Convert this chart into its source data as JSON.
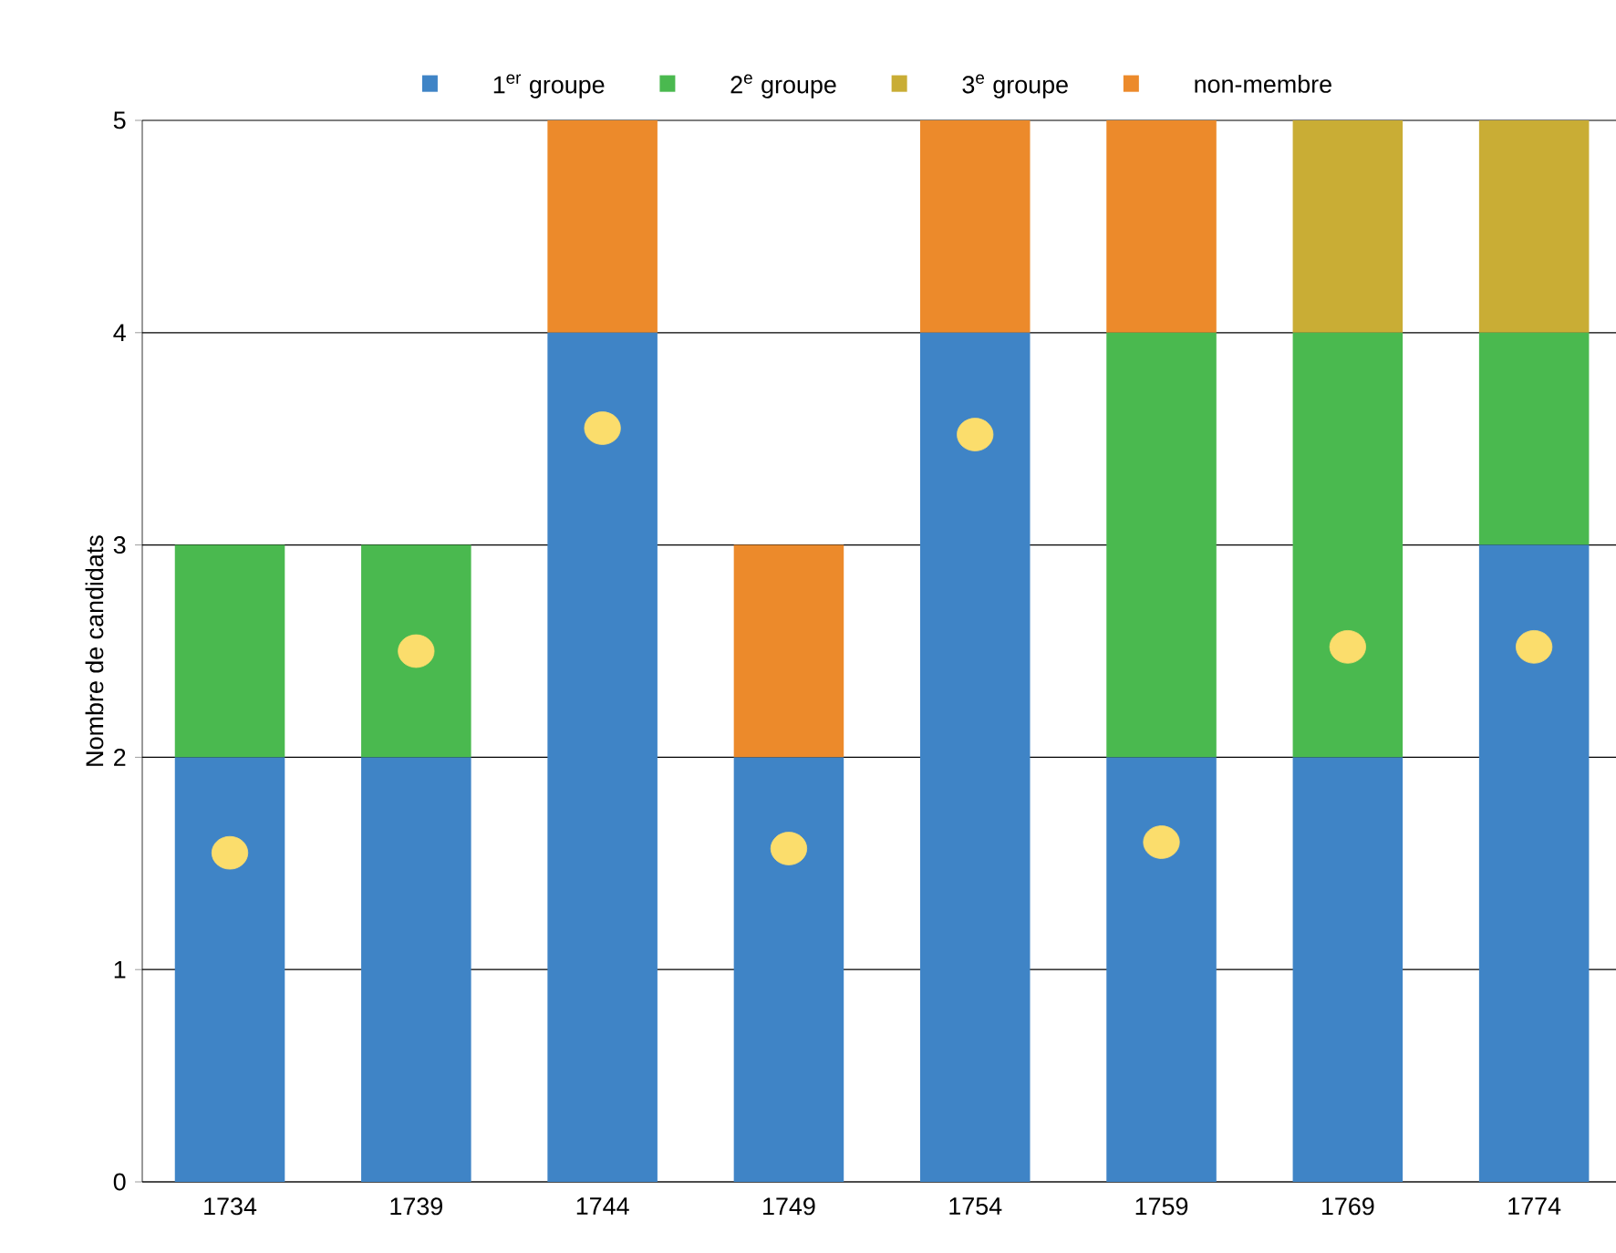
{
  "chart_data": {
    "type": "bar",
    "stacked": true,
    "ylabel": "Nombre de candidats",
    "categories": [
      "1734",
      "1739",
      "1744",
      "1749",
      "1754",
      "1759",
      "1769",
      "1774"
    ],
    "series": [
      {
        "name": "1$^{er}$ groupe",
        "color": "#3f84c6",
        "values": [
          2,
          2,
          4,
          2,
          4,
          2,
          2,
          3
        ]
      },
      {
        "name": "2$^{e}$ groupe",
        "color": "#4ab94f",
        "values": [
          1,
          1,
          0,
          0,
          0,
          2,
          2,
          1
        ]
      },
      {
        "name": "3$^{e}$ groupe",
        "color": "#c9ad35",
        "values": [
          0,
          0,
          0,
          0,
          0,
          0,
          1,
          1
        ]
      },
      {
        "name": "non-membre",
        "color": "#ec8a2b",
        "values": [
          0,
          0,
          1,
          1,
          1,
          1,
          0,
          0
        ]
      },
      {
        "type": "scatter",
        "color": "#fbdd6c",
        "marker": "circle",
        "values": [
          1.55,
          2.5,
          3.55,
          1.57,
          3.52,
          1.6,
          2.52,
          2.52
        ]
      }
    ],
    "ylim": [
      0,
      5
    ],
    "yticks": [
      0,
      1,
      2,
      3,
      4,
      5
    ],
    "grid": "y",
    "legend": "top"
  }
}
